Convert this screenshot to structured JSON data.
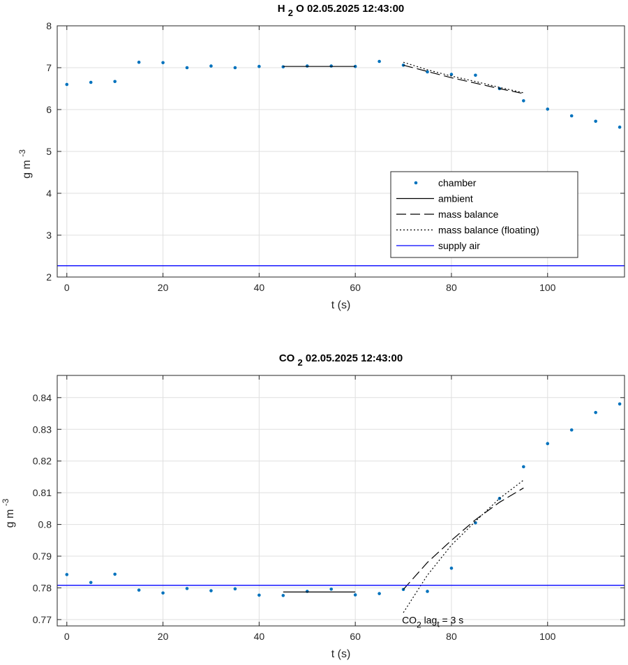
{
  "chart_data": [
    {
      "type": "scatter",
      "title_main": "H",
      "title_sub": "2",
      "title_rest": "O  02.05.2025 12:43:00",
      "xlabel": "t (s)",
      "ylabel_main": "g m",
      "ylabel_sup": "-3",
      "xlim": [
        -2,
        116
      ],
      "ylim": [
        2,
        8
      ],
      "xticks": [
        0,
        20,
        40,
        60,
        80,
        100
      ],
      "xtick_labels": [
        "0",
        "20",
        "40",
        "60",
        "80",
        "100"
      ],
      "yticks": [
        2,
        3,
        4,
        5,
        6,
        7,
        8
      ],
      "ytick_labels": [
        "2",
        "3",
        "4",
        "5",
        "6",
        "7",
        "8"
      ],
      "grid": true,
      "legend": {
        "placement": "lower-right",
        "entries": [
          "chamber",
          "ambient",
          "mass balance",
          "mass balance (floating)",
          "supply air"
        ]
      },
      "series": [
        {
          "name": "chamber",
          "style": "points",
          "color": "#0072BD",
          "x": [
            0,
            5,
            10,
            15,
            20,
            25,
            30,
            35,
            40,
            45,
            50,
            55,
            60,
            65,
            70,
            75,
            80,
            85,
            90,
            95,
            100,
            105,
            110,
            115
          ],
          "y": [
            6.6,
            6.65,
            6.67,
            7.13,
            7.12,
            7.0,
            7.04,
            7.0,
            7.03,
            7.02,
            7.04,
            7.04,
            7.03,
            7.15,
            7.06,
            6.9,
            6.84,
            6.82,
            6.5,
            6.21,
            6.01,
            5.85,
            5.72,
            5.58
          ]
        },
        {
          "name": "ambient",
          "style": "solid",
          "color": "#000000",
          "x": [
            45,
            60
          ],
          "y": [
            7.03,
            7.03
          ]
        },
        {
          "name": "mass balance",
          "style": "dashed",
          "color": "#000000",
          "x": [
            70,
            75,
            80,
            85,
            90,
            95
          ],
          "y": [
            7.06,
            6.91,
            6.76,
            6.63,
            6.5,
            6.38
          ]
        },
        {
          "name": "mass balance (floating)",
          "style": "dotted",
          "color": "#000000",
          "x": [
            70,
            75,
            80,
            85,
            90,
            95
          ],
          "y": [
            7.13,
            6.95,
            6.8,
            6.67,
            6.53,
            6.4
          ]
        },
        {
          "name": "supply air",
          "style": "solid",
          "color": "#0000FF",
          "x": [
            -2,
            116
          ],
          "y": [
            2.27,
            2.27
          ]
        }
      ],
      "annotations": []
    },
    {
      "type": "scatter",
      "title_main": "CO",
      "title_sub": "2",
      "title_rest": "02.05.2025 12:43:00",
      "xlabel": "t (s)",
      "ylabel_main": "g m",
      "ylabel_sup": "-3",
      "xlim": [
        -2,
        116
      ],
      "ylim": [
        0.768,
        0.847
      ],
      "xticks": [
        0,
        20,
        40,
        60,
        80,
        100
      ],
      "xtick_labels": [
        "0",
        "20",
        "40",
        "60",
        "80",
        "100"
      ],
      "yticks": [
        0.77,
        0.78,
        0.79,
        0.8,
        0.81,
        0.82,
        0.83,
        0.84
      ],
      "ytick_labels": [
        "0.77",
        "0.78",
        "0.79",
        "0.8",
        "0.81",
        "0.82",
        "0.83",
        "0.84"
      ],
      "grid": true,
      "legend": null,
      "series": [
        {
          "name": "chamber",
          "style": "points",
          "color": "#0072BD",
          "x": [
            0,
            5,
            10,
            15,
            20,
            25,
            30,
            35,
            40,
            45,
            50,
            55,
            60,
            65,
            70,
            75,
            80,
            85,
            90,
            95,
            100,
            105,
            110,
            115
          ],
          "y": [
            0.7842,
            0.7817,
            0.7843,
            0.7793,
            0.7784,
            0.7798,
            0.7791,
            0.7797,
            0.7777,
            0.7776,
            0.7789,
            0.7796,
            0.7778,
            0.7782,
            0.7795,
            0.7789,
            0.7862,
            0.8005,
            0.8082,
            0.8182,
            0.8255,
            0.8298,
            0.8353,
            0.838
          ]
        },
        {
          "name": "ambient",
          "style": "solid",
          "color": "#000000",
          "x": [
            45,
            60
          ],
          "y": [
            0.7787,
            0.7787
          ]
        },
        {
          "name": "mass balance",
          "style": "dashed",
          "color": "#000000",
          "x": [
            70,
            75,
            80,
            85,
            90,
            95
          ],
          "y": [
            0.7795,
            0.788,
            0.795,
            0.8015,
            0.807,
            0.8115
          ]
        },
        {
          "name": "mass balance (floating)",
          "style": "dotted",
          "color": "#000000",
          "x": [
            70,
            75,
            80,
            85,
            90,
            95
          ],
          "y": [
            0.7722,
            0.784,
            0.7935,
            0.801,
            0.8082,
            0.814
          ]
        },
        {
          "name": "supply air",
          "style": "solid",
          "color": "#0000FF",
          "x": [
            -2,
            116
          ],
          "y": [
            0.7808,
            0.7808
          ]
        }
      ],
      "annotations": [
        {
          "parts": [
            "CO",
            "2",
            " lag",
            "t",
            " = 3 s"
          ],
          "x": 70,
          "y": 0.7705
        }
      ]
    }
  ]
}
